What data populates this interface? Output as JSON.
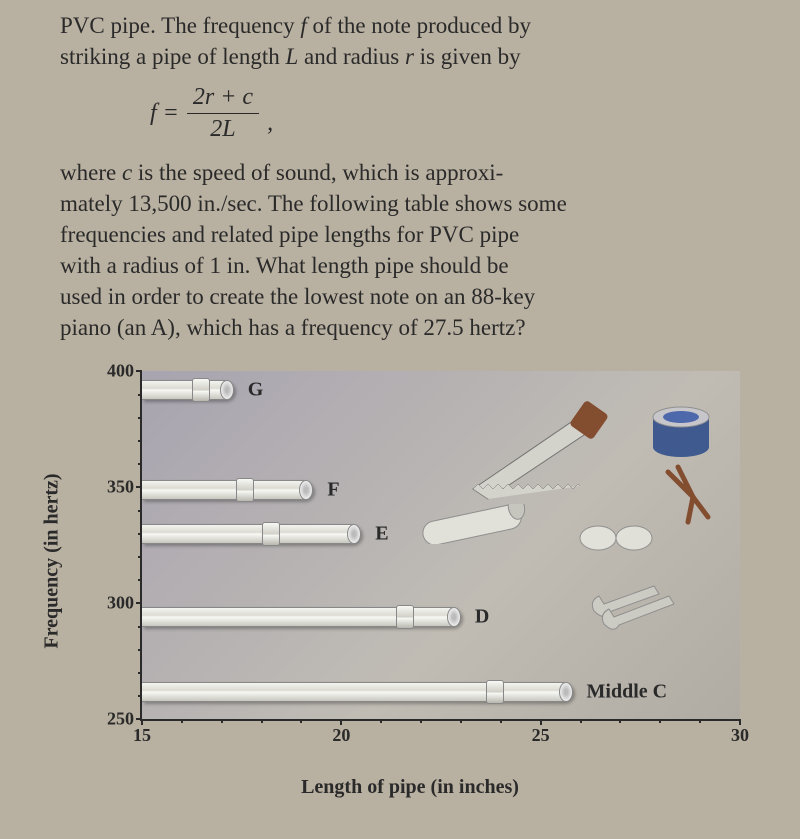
{
  "para1_lines": [
    "PVC pipe. The frequency <span class='i'>f</span> of the note produced by",
    "striking a pipe of length <span class='i'>L</span> and radius <span class='i'>r</span> is given by"
  ],
  "formula": {
    "lhs": "f =",
    "num": "2r + c",
    "den": "2L",
    "tail": ","
  },
  "para2_lines": [
    "where <span class='i'>c</span> is the speed of sound, which is approxi-",
    "mately 13,500 in./sec. The following table shows some",
    "frequencies and related pipe lengths for PVC pipe",
    "with a radius of 1 in. What length pipe should be",
    "used in order to create the lowest note on an 88-key",
    "piano (an A), which has a frequency of 27.5 hertz?"
  ],
  "chart": {
    "ylabel": "Frequency (in hertz)",
    "xlabel": "Length of pipe (in inches)",
    "ylim": [
      250,
      400
    ],
    "xlim": [
      15,
      30
    ],
    "ytick_major": [
      250,
      300,
      350,
      400
    ],
    "xtick_major": [
      15,
      20,
      25,
      30
    ],
    "ytick_minor_step": 10,
    "xtick_minor_step": 1,
    "pipe_color": "#e8e8e0",
    "background_gradient": [
      "#a8a4b0",
      "#c0bcb4"
    ],
    "label_fontsize": 20,
    "tick_fontsize": 18,
    "pipes": [
      {
        "note": "G",
        "length_in": 17.3,
        "freq_hz": 392,
        "joint_at": 0.55
      },
      {
        "note": "F",
        "length_in": 19.3,
        "freq_hz": 349,
        "joint_at": 0.55
      },
      {
        "note": "E",
        "length_in": 20.5,
        "freq_hz": 330,
        "joint_at": 0.55
      },
      {
        "note": "D",
        "length_in": 23.0,
        "freq_hz": 294,
        "joint_at": 0.8
      },
      {
        "note": "Middle C",
        "length_in": 25.8,
        "freq_hz": 262,
        "joint_at": 0.8
      }
    ]
  }
}
